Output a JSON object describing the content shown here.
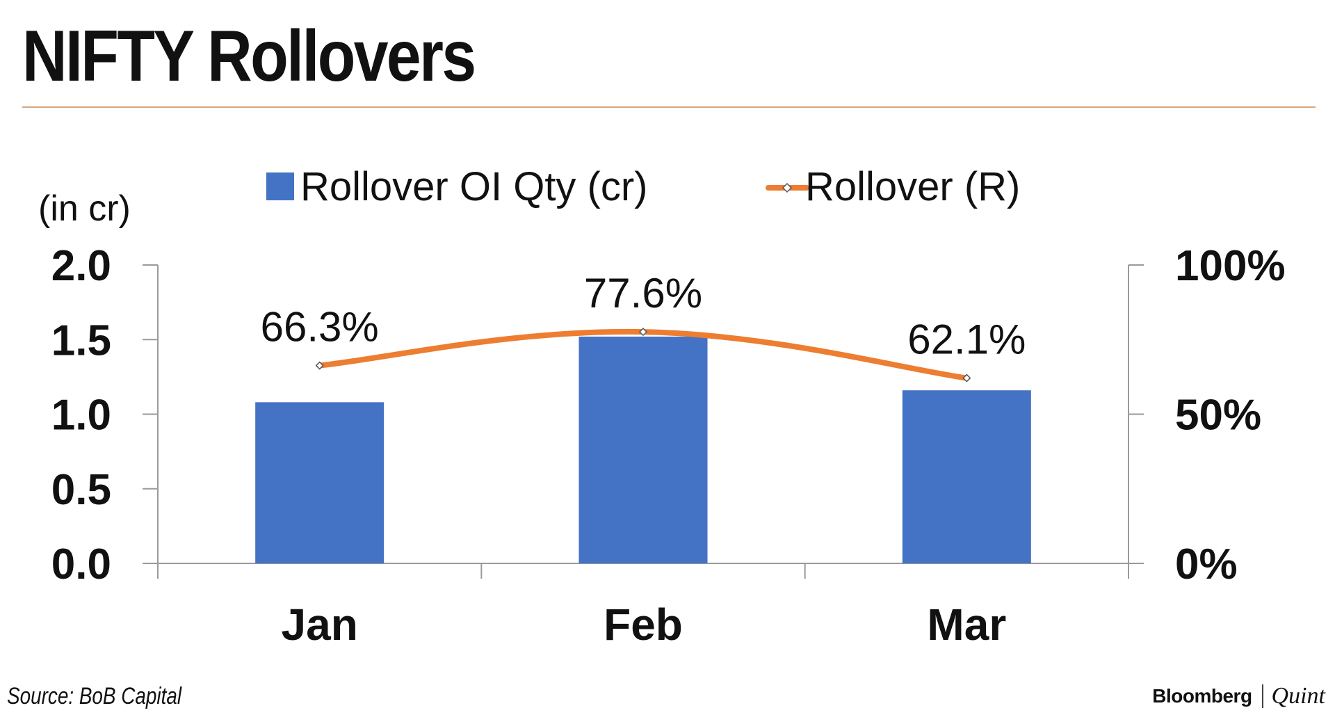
{
  "header": {
    "title": "NIFTY Rollovers"
  },
  "footer": {
    "source": "Source: BoB Capital",
    "brand_left": "Bloomberg",
    "brand_right": "Quint"
  },
  "colors": {
    "bar": "#4472c4",
    "line": "#ed7d31",
    "axis": "#9a9a9a",
    "rule": "#d9a47a"
  },
  "chart_data": {
    "type": "bar",
    "categories": [
      "Jan",
      "Feb",
      "Mar"
    ],
    "series": [
      {
        "name": "Rollover OI Qty (cr)",
        "type": "bar",
        "axis": "left",
        "values": [
          1.08,
          1.52,
          1.16
        ]
      },
      {
        "name": "Rollover (R)",
        "type": "line",
        "axis": "right",
        "smooth": true,
        "marker": "diamond",
        "values": [
          66.3,
          77.6,
          62.1
        ],
        "data_labels": [
          "66.3%",
          "77.6%",
          "62.1%"
        ]
      }
    ],
    "left_axis": {
      "label": "(in cr)",
      "range": [
        0,
        2.0
      ],
      "ticks": [
        0,
        0.5,
        1.0,
        1.5,
        2.0
      ],
      "tick_labels": [
        "0.0",
        "0.5",
        "1.0",
        "1.5",
        "2.0"
      ]
    },
    "right_axis": {
      "range": [
        0,
        100
      ],
      "ticks": [
        0,
        50,
        100
      ],
      "tick_labels": [
        "0%",
        "50%",
        "100%"
      ]
    },
    "legend_position": "top",
    "grid": false
  }
}
